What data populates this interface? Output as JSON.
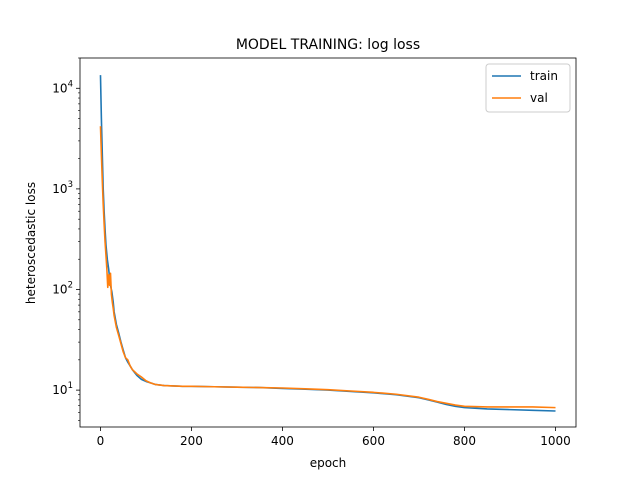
{
  "chart_data": {
    "type": "line",
    "title": "MODEL TRAINING: log loss",
    "xlabel": "epoch",
    "ylabel": "heteroscedastic loss",
    "yscale": "log",
    "xlim": [
      -45,
      1045
    ],
    "ylim": [
      4.3,
      20000
    ],
    "grid": false,
    "legend_position": "top-right",
    "x_ticks": [
      0,
      200,
      400,
      600,
      800,
      1000
    ],
    "y_ticks": [
      {
        "base": "10",
        "exp": "1",
        "value": 10
      },
      {
        "base": "10",
        "exp": "2",
        "value": 100
      },
      {
        "base": "10",
        "exp": "3",
        "value": 1000
      },
      {
        "base": "10",
        "exp": "4",
        "value": 10000
      }
    ],
    "series": [
      {
        "name": "train",
        "color": "#1f77b4",
        "x": [
          0,
          2,
          4,
          6,
          8,
          10,
          12,
          15,
          18,
          20,
          22,
          25,
          28,
          30,
          35,
          40,
          45,
          50,
          55,
          60,
          70,
          80,
          90,
          100,
          110,
          120,
          140,
          160,
          180,
          200,
          250,
          300,
          350,
          400,
          450,
          500,
          550,
          600,
          650,
          700,
          720,
          740,
          760,
          780,
          800,
          850,
          900,
          950,
          1000
        ],
        "y": [
          13500,
          5000,
          2200,
          1000,
          600,
          400,
          280,
          200,
          160,
          130,
          110,
          95,
          75,
          60,
          45,
          37,
          30,
          25,
          21,
          19,
          16,
          14,
          12.8,
          12.2,
          11.8,
          11.4,
          11.1,
          11.0,
          10.9,
          10.9,
          10.8,
          10.7,
          10.6,
          10.4,
          10.2,
          10.0,
          9.7,
          9.4,
          9.0,
          8.4,
          8.0,
          7.6,
          7.2,
          6.9,
          6.7,
          6.5,
          6.4,
          6.3,
          6.2
        ]
      },
      {
        "name": "val",
        "color": "#ff7f0e",
        "x": [
          0,
          2,
          4,
          6,
          8,
          10,
          12,
          14,
          16,
          18,
          20,
          22,
          24,
          26,
          28,
          30,
          35,
          40,
          45,
          50,
          55,
          60,
          65,
          70,
          80,
          90,
          100,
          110,
          120,
          140,
          160,
          180,
          200,
          250,
          300,
          350,
          400,
          450,
          500,
          550,
          600,
          650,
          700,
          720,
          740,
          760,
          780,
          800,
          850,
          900,
          950,
          1000
        ],
        "y": [
          4200,
          2200,
          1200,
          700,
          450,
          300,
          220,
          160,
          105,
          140,
          110,
          145,
          90,
          75,
          65,
          55,
          42,
          35,
          29,
          24,
          21,
          20,
          17.5,
          16,
          14.5,
          13.5,
          12.4,
          11.8,
          11.4,
          11.1,
          11.0,
          10.9,
          10.9,
          10.8,
          10.7,
          10.6,
          10.5,
          10.3,
          10.1,
          9.8,
          9.5,
          9.1,
          8.5,
          8.1,
          7.7,
          7.4,
          7.1,
          6.9,
          6.8,
          6.8,
          6.8,
          6.7
        ]
      }
    ]
  }
}
